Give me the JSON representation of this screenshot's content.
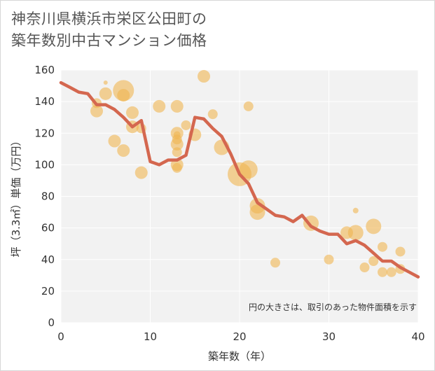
{
  "title_lines": [
    "神奈川県横浜市栄区公田町の",
    "築年数別中古マンション価格"
  ],
  "colors": {
    "bubble": "#f0b552",
    "line": "#d4674f",
    "plot_bg": "#f2f2f2",
    "grid": "#ffffff"
  },
  "chart_data": {
    "type": "scatter",
    "xlabel": "築年数（年）",
    "ylabel": "坪（3.3㎡）単価（万円）",
    "xlim": [
      0,
      40
    ],
    "ylim": [
      0,
      160
    ],
    "x_ticks": [
      0,
      10,
      20,
      30,
      40
    ],
    "y_ticks": [
      0,
      20,
      40,
      60,
      80,
      100,
      120,
      140,
      160
    ],
    "grid": true,
    "annotation": "円の大きさは、取引のあった物件面積を示す",
    "scatter": [
      {
        "x": 4,
        "y": 134,
        "r": 9
      },
      {
        "x": 4,
        "y": 139,
        "r": 7
      },
      {
        "x": 5,
        "y": 145,
        "r": 9
      },
      {
        "x": 5,
        "y": 152,
        "r": 3
      },
      {
        "x": 6,
        "y": 115,
        "r": 9
      },
      {
        "x": 7,
        "y": 147,
        "r": 15
      },
      {
        "x": 7,
        "y": 144,
        "r": 9
      },
      {
        "x": 7,
        "y": 109,
        "r": 9
      },
      {
        "x": 8,
        "y": 133,
        "r": 9
      },
      {
        "x": 8,
        "y": 124,
        "r": 9
      },
      {
        "x": 9,
        "y": 123,
        "r": 7
      },
      {
        "x": 9,
        "y": 95,
        "r": 9
      },
      {
        "x": 11,
        "y": 137,
        "r": 9
      },
      {
        "x": 13,
        "y": 137,
        "r": 9
      },
      {
        "x": 13,
        "y": 120,
        "r": 9
      },
      {
        "x": 13,
        "y": 116,
        "r": 7
      },
      {
        "x": 13,
        "y": 113,
        "r": 9
      },
      {
        "x": 13,
        "y": 108,
        "r": 7
      },
      {
        "x": 13,
        "y": 100,
        "r": 9
      },
      {
        "x": 13,
        "y": 98,
        "r": 7
      },
      {
        "x": 13,
        "y": 119,
        "r": 5
      },
      {
        "x": 14,
        "y": 125,
        "r": 7
      },
      {
        "x": 15,
        "y": 119,
        "r": 9
      },
      {
        "x": 16,
        "y": 156,
        "r": 9
      },
      {
        "x": 17,
        "y": 132,
        "r": 7
      },
      {
        "x": 18,
        "y": 111,
        "r": 11
      },
      {
        "x": 20,
        "y": 94,
        "r": 17
      },
      {
        "x": 21,
        "y": 97,
        "r": 13
      },
      {
        "x": 21,
        "y": 137,
        "r": 7
      },
      {
        "x": 22,
        "y": 74,
        "r": 11
      },
      {
        "x": 22,
        "y": 70,
        "r": 11
      },
      {
        "x": 24,
        "y": 38,
        "r": 7
      },
      {
        "x": 28,
        "y": 63,
        "r": 11
      },
      {
        "x": 30,
        "y": 40,
        "r": 7
      },
      {
        "x": 32,
        "y": 57,
        "r": 9
      },
      {
        "x": 33,
        "y": 57,
        "r": 11
      },
      {
        "x": 33,
        "y": 71,
        "r": 4
      },
      {
        "x": 34,
        "y": 35,
        "r": 7
      },
      {
        "x": 35,
        "y": 61,
        "r": 11
      },
      {
        "x": 35,
        "y": 39,
        "r": 7
      },
      {
        "x": 36,
        "y": 48,
        "r": 7
      },
      {
        "x": 36,
        "y": 32,
        "r": 7
      },
      {
        "x": 37,
        "y": 32,
        "r": 7
      },
      {
        "x": 38,
        "y": 45,
        "r": 7
      },
      {
        "x": 38,
        "y": 34,
        "r": 7
      }
    ],
    "trend": {
      "x": [
        0,
        1,
        2,
        3,
        4,
        5,
        6,
        7,
        8,
        9,
        10,
        11,
        12,
        13,
        14,
        15,
        16,
        17,
        18,
        19,
        20,
        21,
        22,
        23,
        24,
        25,
        26,
        27,
        28,
        29,
        30,
        31,
        32,
        33,
        34,
        35,
        36,
        37,
        38,
        39,
        40
      ],
      "y": [
        152,
        149,
        146,
        145,
        138,
        138,
        135,
        130,
        124,
        128,
        102,
        100,
        103,
        103,
        106,
        130,
        129,
        123,
        118,
        107,
        94,
        88,
        76,
        72,
        68,
        67,
        64,
        68,
        61,
        58,
        56,
        56,
        50,
        52,
        49,
        44,
        39,
        39,
        35,
        32,
        29
      ]
    }
  }
}
